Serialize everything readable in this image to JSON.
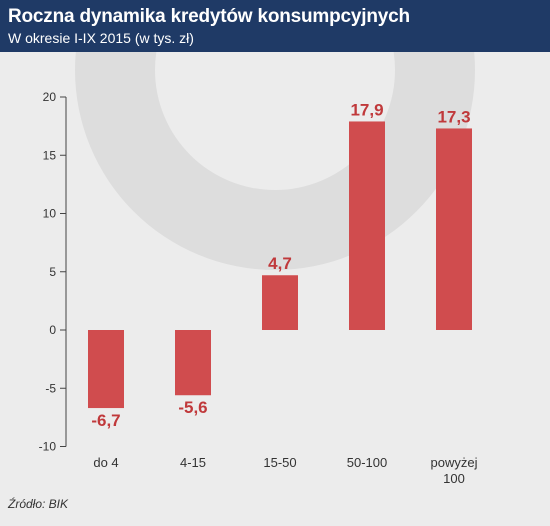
{
  "header": {
    "title": "Roczna dynamika kredytów konsumpcyjnych",
    "subtitle": "W okresie I-IX 2015 (w tys. zł)"
  },
  "footer": {
    "source": "Źródło: BIK"
  },
  "colors": {
    "header_bg": "#1f3a66",
    "plot_bg": "#ececec",
    "bar": "#d04c4e",
    "label": "#c0393b",
    "axis_text": "#333333",
    "watermark": "#dddddd"
  },
  "chart_data": {
    "type": "bar",
    "categories": [
      "do 4",
      "4-15",
      "15-50",
      "50-100",
      "powyżej 100"
    ],
    "category_lines": [
      [
        "do 4"
      ],
      [
        "4-15"
      ],
      [
        "15-50"
      ],
      [
        "50-100"
      ],
      [
        "powyżej",
        "100"
      ]
    ],
    "values": [
      -6.7,
      -5.6,
      4.7,
      17.9,
      17.3
    ],
    "data_labels": [
      "-6,7",
      "-5,6",
      "4,7",
      "17,9",
      "17,3"
    ],
    "yticks": [
      -10,
      -5,
      0,
      5,
      10,
      15,
      20
    ],
    "ytick_labels": [
      "-10",
      "-5",
      "0",
      "5",
      "10",
      "15",
      "20"
    ],
    "ylim": [
      -10,
      20
    ],
    "grid": false,
    "legend": "none"
  }
}
